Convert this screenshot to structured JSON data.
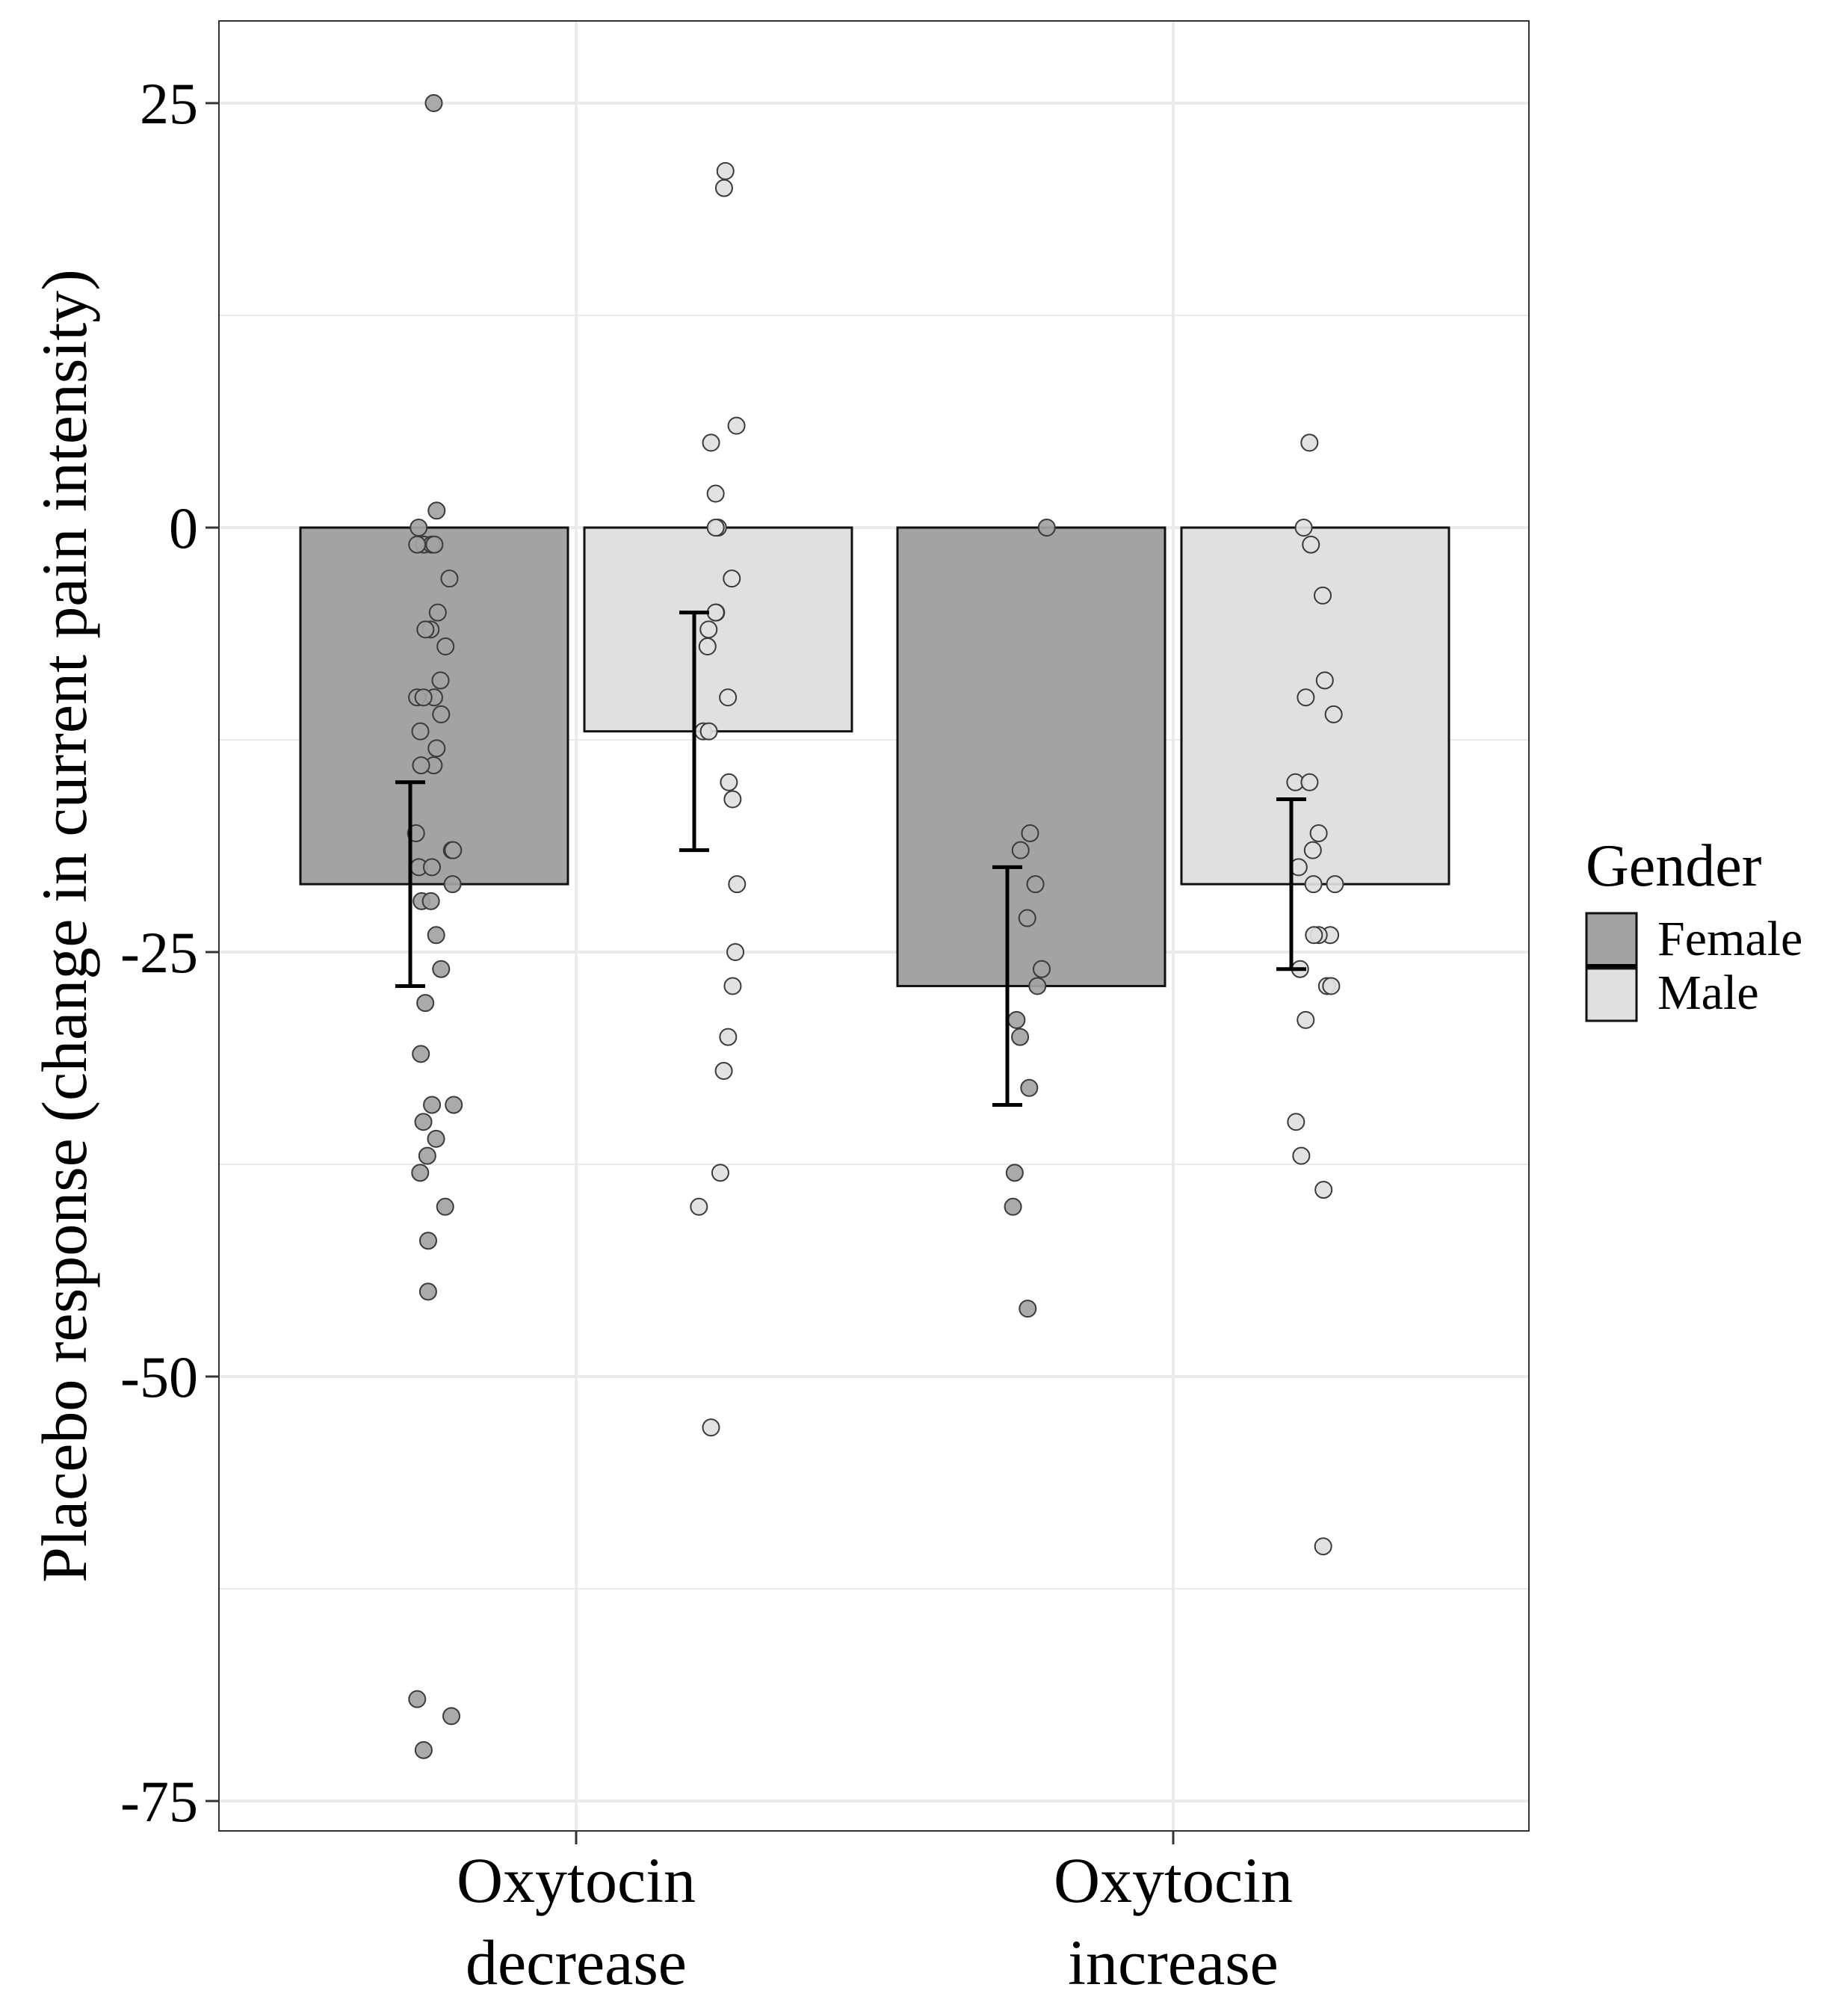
{
  "chart_data": {
    "type": "bar",
    "title": "",
    "xlabel": "",
    "ylabel": "Placebo response (change in current pain intensity)",
    "ylim": [
      -77,
      30
    ],
    "yticks": [
      25,
      0,
      -25,
      -50,
      -75
    ],
    "ytick_labels": [
      "25",
      "0",
      "-25",
      "-50",
      "-75"
    ],
    "categories": [
      {
        "line1": "Oxytocin",
        "line2": "decrease"
      },
      {
        "line1": "Oxytocin",
        "line2": "increase"
      }
    ],
    "legend": {
      "title": "Gender",
      "position": "right",
      "entries": [
        "Female",
        "Male"
      ]
    },
    "colors": {
      "Female": "#a3a3a3",
      "Male": "#e0e0e0",
      "grid": "#ebebeb",
      "bar_outline": "#111111"
    },
    "series": [
      {
        "name": "Female",
        "values": [
          -21,
          -27
        ],
        "error": [
          [
            -27,
            -15
          ],
          [
            -34,
            -20
          ]
        ],
        "points": [
          [
            25,
            1,
            0,
            -1,
            -1,
            -1,
            -1,
            -3,
            -5,
            -6,
            -6,
            -7,
            -9,
            -10,
            -10,
            -10,
            -11,
            -12,
            -13,
            -14,
            -14,
            -18,
            -19,
            -19,
            -20,
            -20,
            -21,
            -22,
            -22,
            -24,
            -26,
            -28,
            -31,
            -34,
            -34,
            -35,
            -36,
            -37,
            -38,
            -40,
            -42,
            -45,
            -69,
            -70,
            -72
          ],
          [
            0,
            -18,
            -19,
            -21,
            -23,
            -26,
            -27,
            -29,
            -30,
            -33,
            -38,
            -40,
            -46
          ]
        ]
      },
      {
        "name": "Male",
        "values": [
          -12,
          -21
        ],
        "error": [
          [
            -19,
            -5
          ],
          [
            -26,
            -16
          ]
        ],
        "points": [
          [
            21,
            20,
            6,
            5,
            2,
            0,
            0,
            -3,
            -5,
            -5,
            -6,
            -7,
            -10,
            -12,
            -12,
            -15,
            -16,
            -21,
            -25,
            -27,
            -30,
            -32,
            -38,
            -40,
            -53
          ],
          [
            5,
            0,
            -1,
            -4,
            -9,
            -10,
            -11,
            -15,
            -15,
            -18,
            -19,
            -20,
            -21,
            -21,
            -24,
            -24,
            -24,
            -26,
            -27,
            -27,
            -29,
            -35,
            -37,
            -39,
            -60
          ]
        ]
      }
    ]
  }
}
